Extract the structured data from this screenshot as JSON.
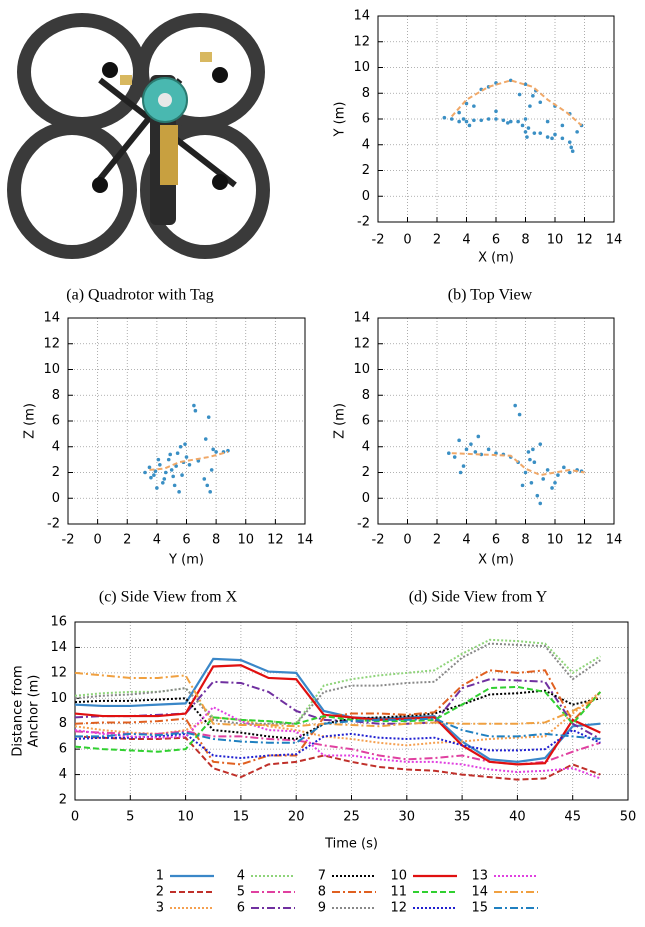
{
  "photo": {
    "caption": "(a) Quadrotor with Tag"
  },
  "chart_data": [
    {
      "type": "scatter",
      "caption": "(b) Top View",
      "xlabel": "X (m)",
      "ylabel": "Y (m)",
      "xlim": [
        -2,
        14
      ],
      "ylim": [
        -2,
        14
      ],
      "xticks": [
        -2,
        0,
        2,
        4,
        6,
        8,
        10,
        12,
        14
      ],
      "yticks": [
        -2,
        0,
        2,
        4,
        6,
        8,
        10,
        12,
        14
      ],
      "grid": true,
      "points": {
        "color": "#3a8fc4",
        "x": [
          2.5,
          3,
          3.5,
          4,
          4.5,
          5,
          5.5,
          6,
          6.5,
          7,
          7.5,
          8,
          8.2,
          8.6,
          9,
          9.5,
          10,
          10.5,
          11,
          11.2,
          11.5,
          11.8,
          11,
          10,
          9,
          8.5,
          8,
          7,
          6,
          5,
          4,
          3.5,
          4.5,
          6,
          8,
          9.5,
          10.5,
          8.3,
          8.7,
          5.5,
          3.8,
          6.8,
          7.8,
          9.8,
          11.1,
          8.1,
          7.6,
          4.2
        ],
        "y": [
          6.1,
          6.0,
          5.8,
          5.8,
          5.9,
          5.9,
          6.0,
          6.0,
          5.9,
          5.8,
          5.8,
          5.0,
          5.3,
          4.9,
          4.9,
          4.6,
          4.8,
          4.5,
          4.2,
          3.5,
          5.0,
          5.5,
          6.4,
          7.0,
          7.3,
          7.8,
          8.7,
          9.0,
          8.8,
          8.3,
          7.2,
          6.5,
          7.0,
          6.6,
          6.0,
          5.8,
          5.5,
          7.0,
          8.2,
          8.5,
          6.0,
          5.7,
          5.5,
          4.5,
          3.8,
          4.6,
          7.9,
          5.5
        ]
      },
      "path": {
        "color": "#f0a868",
        "x": [
          3,
          4,
          5.5,
          7,
          8.5,
          9.5,
          10.8,
          11.8
        ],
        "y": [
          6.2,
          7.5,
          8.5,
          9.0,
          8.5,
          7.5,
          6.5,
          5.5
        ]
      }
    },
    {
      "type": "scatter",
      "caption": "(c) Side View from X",
      "xlabel": "Y (m)",
      "ylabel": "Z (m)",
      "xlim": [
        -2,
        14
      ],
      "ylim": [
        -2,
        14
      ],
      "xticks": [
        -2,
        0,
        2,
        4,
        6,
        8,
        10,
        12,
        14
      ],
      "yticks": [
        -2,
        0,
        2,
        4,
        6,
        8,
        10,
        12,
        14
      ],
      "grid": true,
      "points": {
        "color": "#3a8fc4",
        "x": [
          3.2,
          3.5,
          3.8,
          4.0,
          4.2,
          4.5,
          4.8,
          5.0,
          5.2,
          5.4,
          5.6,
          5.8,
          6.0,
          5.5,
          5.7,
          4.9,
          4.4,
          3.9,
          3.6,
          6.5,
          6.6,
          6.8,
          7.2,
          7.5,
          7.6,
          7.7,
          7.8,
          7.4,
          8.0,
          8.5,
          8.8,
          5.3,
          4.6,
          6.2,
          7.3,
          5.9,
          4.1,
          5.1
        ],
        "y": [
          2.0,
          2.4,
          1.8,
          0.8,
          2.6,
          1.5,
          3.0,
          2.2,
          1.0,
          3.5,
          4.0,
          2.8,
          3.2,
          0.5,
          1.8,
          3.4,
          1.2,
          2.1,
          1.6,
          7.2,
          6.8,
          2.9,
          1.5,
          6.3,
          0.5,
          2.2,
          3.8,
          1.0,
          3.6,
          3.6,
          3.7,
          2.5,
          2.0,
          2.6,
          4.6,
          4.2,
          3.0,
          1.7
        ]
      },
      "path": {
        "color": "#f0a868",
        "x": [
          3.5,
          4.5,
          5.5,
          6.5,
          7.5,
          8.8
        ],
        "y": [
          2.2,
          2.3,
          2.8,
          3.0,
          3.2,
          3.6
        ]
      }
    },
    {
      "type": "scatter",
      "caption": "(d) Side View from Y",
      "xlabel": "X (m)",
      "ylabel": "Z (m)",
      "xlim": [
        -2,
        14
      ],
      "ylim": [
        -2,
        14
      ],
      "xticks": [
        -2,
        0,
        2,
        4,
        6,
        8,
        10,
        12,
        14
      ],
      "yticks": [
        -2,
        0,
        2,
        4,
        6,
        8,
        10,
        12,
        14
      ],
      "grid": true,
      "points": {
        "color": "#3a8fc4",
        "x": [
          2.8,
          3.2,
          3.5,
          3.8,
          4.0,
          4.3,
          4.6,
          5.0,
          5.5,
          6.0,
          6.5,
          7.0,
          7.5,
          7.8,
          8.0,
          8.2,
          8.4,
          8.6,
          8.8,
          9.0,
          9.2,
          9.5,
          9.8,
          10.2,
          10.6,
          11.0,
          11.5,
          11.8,
          7.3,
          7.6,
          9.0,
          8.5,
          10.0,
          3.6,
          4.8,
          8.3
        ],
        "y": [
          3.5,
          3.2,
          4.5,
          2.5,
          3.8,
          4.2,
          3.6,
          3.4,
          3.8,
          3.5,
          3.4,
          3.2,
          2.8,
          1.0,
          2.0,
          3.6,
          1.2,
          2.8,
          0.2,
          -0.4,
          1.5,
          2.2,
          0.8,
          1.8,
          2.4,
          2.0,
          2.2,
          2.1,
          7.2,
          6.5,
          4.2,
          3.8,
          1.2,
          2.0,
          4.8,
          3.0
        ]
      },
      "path": {
        "color": "#f0a868",
        "x": [
          3,
          5,
          7,
          8,
          9,
          10,
          11,
          12
        ],
        "y": [
          3.5,
          3.4,
          3.3,
          2.3,
          1.8,
          2.0,
          2.2,
          2.0
        ]
      }
    },
    {
      "type": "line",
      "xlabel": "Time (s)",
      "ylabel": [
        "Distance from",
        "Anchor (m)"
      ],
      "xlim": [
        0,
        50
      ],
      "ylim": [
        2,
        16
      ],
      "xticks": [
        0,
        5,
        10,
        15,
        20,
        25,
        30,
        35,
        40,
        45,
        50
      ],
      "yticks": [
        2,
        4,
        6,
        8,
        10,
        12,
        14,
        16
      ],
      "grid": true,
      "x": [
        0,
        2.5,
        5,
        7.5,
        10,
        12.5,
        15,
        17.5,
        20,
        22.5,
        25,
        27.5,
        30,
        32.5,
        35,
        37.5,
        40,
        42.5,
        45,
        47.5
      ],
      "series": [
        {
          "name": "1",
          "color": "#3a87c8",
          "style": "solid",
          "values": [
            9.5,
            9.4,
            9.4,
            9.5,
            9.6,
            13.1,
            13.0,
            12.1,
            12.0,
            9.0,
            8.5,
            8.4,
            8.5,
            8.6,
            6.6,
            5.2,
            5.0,
            5.3,
            7.8,
            8.0
          ]
        },
        {
          "name": "2",
          "color": "#c0302a",
          "style": "dashed",
          "values": [
            7.0,
            6.9,
            6.8,
            6.8,
            6.9,
            4.5,
            3.8,
            4.8,
            5.0,
            5.5,
            5.0,
            4.6,
            4.4,
            4.3,
            4.0,
            3.8,
            3.6,
            3.7,
            4.8,
            4.0
          ]
        },
        {
          "name": "3",
          "color": "#f5a050",
          "style": "dotted",
          "values": [
            7.8,
            7.5,
            7.3,
            7.2,
            7.5,
            8.5,
            8.3,
            7.8,
            7.5,
            7.0,
            6.8,
            6.5,
            6.3,
            6.5,
            6.6,
            6.8,
            6.9,
            7.0,
            8.8,
            10.5
          ]
        },
        {
          "name": "4",
          "color": "#8fd47a",
          "style": "dotted",
          "values": [
            10.2,
            10.4,
            10.5,
            10.5,
            10.8,
            8.5,
            8.3,
            8.2,
            8.0,
            11.0,
            11.5,
            11.8,
            12.0,
            12.2,
            13.5,
            14.6,
            14.5,
            14.3,
            12.0,
            13.3
          ]
        },
        {
          "name": "5",
          "color": "#e040a0",
          "style": "dashdot",
          "values": [
            7.4,
            7.3,
            7.2,
            7.2,
            7.4,
            7.0,
            7.0,
            6.8,
            6.7,
            6.3,
            6.0,
            5.5,
            5.2,
            5.3,
            5.5,
            5.0,
            4.8,
            5.0,
            5.8,
            6.5
          ]
        },
        {
          "name": "6",
          "color": "#7030a0",
          "style": "dashdot",
          "values": [
            8.5,
            8.6,
            8.6,
            8.7,
            8.8,
            11.3,
            11.2,
            10.5,
            9.0,
            8.3,
            8.2,
            8.0,
            8.0,
            8.1,
            10.8,
            11.5,
            11.4,
            11.3,
            8.0,
            6.8
          ]
        },
        {
          "name": "7",
          "color": "#000000",
          "style": "dotted",
          "values": [
            9.7,
            9.8,
            9.8,
            9.9,
            10.0,
            7.5,
            7.3,
            7.0,
            6.8,
            8.0,
            8.4,
            8.5,
            8.6,
            8.8,
            9.5,
            10.3,
            10.4,
            10.6,
            9.5,
            10.0
          ]
        },
        {
          "name": "8",
          "color": "#e06020",
          "style": "dashdot",
          "values": [
            8.0,
            8.1,
            8.1,
            8.2,
            8.4,
            5.0,
            4.8,
            5.5,
            5.5,
            8.5,
            8.8,
            8.8,
            8.7,
            8.9,
            11.0,
            12.2,
            12.0,
            12.2,
            8.2,
            10.5
          ]
        },
        {
          "name": "9",
          "color": "#888888",
          "style": "dotted",
          "values": [
            10.0,
            10.2,
            10.3,
            10.5,
            10.8,
            8.3,
            8.0,
            8.0,
            8.0,
            10.5,
            11.0,
            11.0,
            11.2,
            11.3,
            13.2,
            14.3,
            14.2,
            14.1,
            11.5,
            13.0
          ]
        },
        {
          "name": "10",
          "color": "#e01010",
          "style": "solid",
          "values": [
            8.8,
            8.6,
            8.6,
            8.6,
            8.8,
            12.5,
            12.6,
            11.6,
            11.5,
            8.7,
            8.5,
            8.3,
            8.4,
            8.5,
            6.3,
            5.0,
            4.8,
            4.9,
            8.3,
            7.3
          ]
        },
        {
          "name": "11",
          "color": "#30d030",
          "style": "dashed",
          "values": [
            6.2,
            6.0,
            5.9,
            5.8,
            6.0,
            8.5,
            8.3,
            8.2,
            8.0,
            8.6,
            8.3,
            8.2,
            8.2,
            8.3,
            9.5,
            10.8,
            10.9,
            10.5,
            8.0,
            10.5
          ]
        },
        {
          "name": "12",
          "color": "#2020d0",
          "style": "dotted",
          "values": [
            6.8,
            6.9,
            6.9,
            7.0,
            7.2,
            5.5,
            5.3,
            5.5,
            5.6,
            7.0,
            7.2,
            6.9,
            6.8,
            6.9,
            6.3,
            5.9,
            5.9,
            6.0,
            7.5,
            6.5
          ]
        },
        {
          "name": "13",
          "color": "#e040e0",
          "style": "dotted",
          "values": [
            7.5,
            7.2,
            7.0,
            6.9,
            7.0,
            9.3,
            8.2,
            7.5,
            7.4,
            5.5,
            5.5,
            5.2,
            5.0,
            5.0,
            4.8,
            4.4,
            4.2,
            4.3,
            4.5,
            3.7
          ]
        },
        {
          "name": "14",
          "color": "#f0a040",
          "style": "dashdot",
          "values": [
            12.0,
            11.8,
            11.6,
            11.6,
            11.8,
            8.0,
            7.9,
            7.9,
            7.8,
            8.0,
            7.9,
            7.8,
            8.0,
            8.1,
            8.0,
            8.0,
            8.0,
            8.1,
            9.0,
            10.2
          ]
        },
        {
          "name": "15",
          "color": "#2080c0",
          "style": "dashdot",
          "values": [
            7.0,
            7.0,
            7.2,
            7.1,
            7.3,
            6.8,
            6.6,
            6.5,
            6.5,
            8.0,
            8.2,
            8.3,
            8.3,
            8.4,
            7.5,
            7.0,
            7.0,
            7.2,
            7.0,
            6.8
          ]
        }
      ]
    }
  ]
}
